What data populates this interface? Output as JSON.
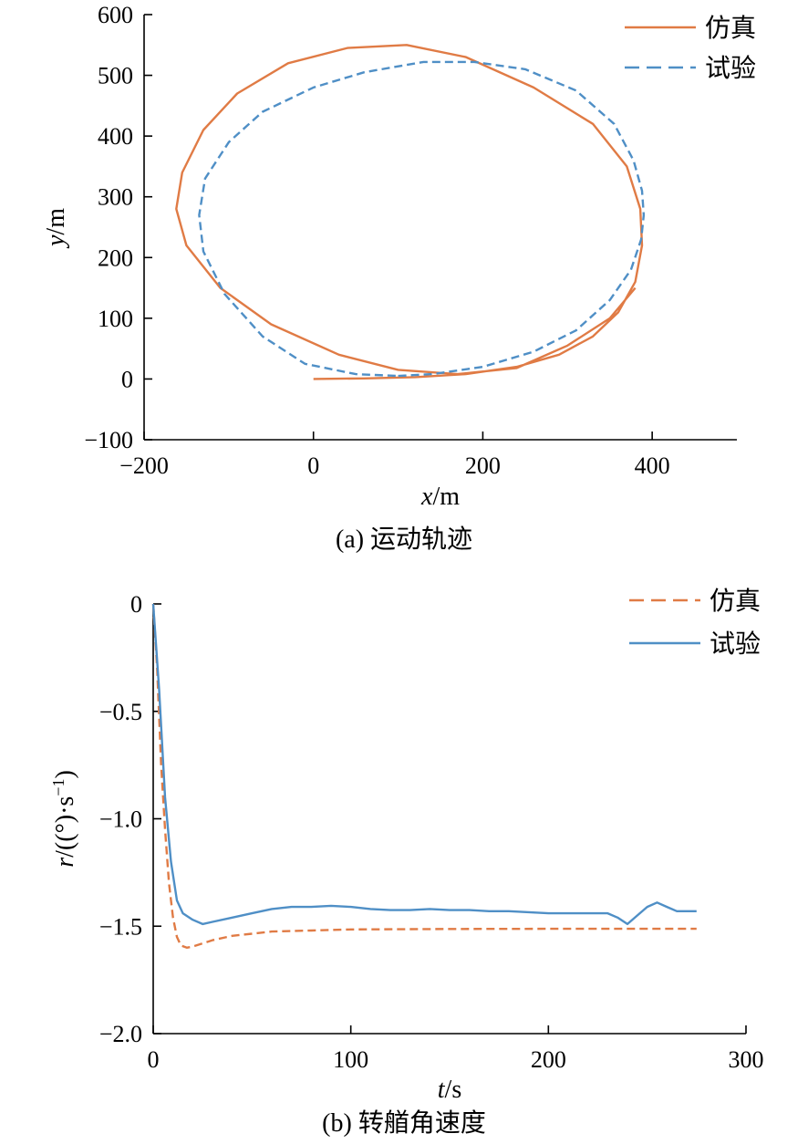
{
  "chart_data": [
    {
      "type": "line",
      "caption": "(a) 运动轨迹",
      "xlabel_var": "x",
      "xlabel_unit": "/m",
      "ylabel_var": "y",
      "ylabel_unit": "/m",
      "xlim": [
        -200,
        500
      ],
      "ylim": [
        -100,
        600
      ],
      "x_ticks": [
        -200,
        0,
        200,
        400
      ],
      "y_ticks": [
        -100,
        0,
        100,
        200,
        300,
        400,
        500,
        600
      ],
      "x_tick_labels": [
        "−200",
        "0",
        "200",
        "400"
      ],
      "y_tick_labels": [
        "−100",
        "0",
        "100",
        "200",
        "300",
        "400",
        "500",
        "600"
      ],
      "legend_position": "top-right",
      "series": [
        {
          "name": "仿真",
          "color": "#E07B45",
          "style": "solid",
          "x": [
            0,
            60,
            120,
            180,
            240,
            290,
            330,
            360,
            380,
            388,
            386,
            370,
            330,
            260,
            180,
            110,
            40,
            -30,
            -90,
            -130,
            -155,
            -162,
            -150,
            -110,
            -50,
            30,
            100,
            170,
            240,
            300,
            350,
            380
          ],
          "y": [
            0,
            1,
            3,
            8,
            20,
            40,
            70,
            110,
            160,
            220,
            280,
            350,
            420,
            480,
            530,
            550,
            545,
            520,
            470,
            410,
            340,
            280,
            220,
            150,
            90,
            40,
            15,
            8,
            18,
            55,
            100,
            150
          ]
        },
        {
          "name": "试验",
          "color": "#4F8FC6",
          "style": "dashed",
          "x": [
            100,
            140,
            200,
            260,
            310,
            350,
            375,
            387,
            390,
            388,
            378,
            355,
            310,
            250,
            190,
            130,
            60,
            0,
            -60,
            -100,
            -128,
            -135,
            -130,
            -105,
            -60,
            -10,
            50,
            100
          ],
          "y": [
            5,
            8,
            20,
            45,
            80,
            130,
            180,
            230,
            270,
            310,
            360,
            420,
            475,
            510,
            522,
            522,
            505,
            480,
            440,
            390,
            330,
            270,
            210,
            140,
            70,
            25,
            8,
            5
          ]
        }
      ]
    },
    {
      "type": "line",
      "caption": "(b) 转艏角速度",
      "xlabel_var": "t",
      "xlabel_unit": "/s",
      "ylabel_var": "r",
      "ylabel_unit": "/((°)·s",
      "ylabel_sup": "−1",
      "ylabel_close": ")",
      "xlim": [
        0,
        300
      ],
      "ylim": [
        -2.0,
        0
      ],
      "x_ticks": [
        0,
        100,
        200,
        300
      ],
      "y_ticks": [
        0,
        -0.5,
        -1.0,
        -1.5,
        -2.0
      ],
      "x_tick_labels": [
        "0",
        "100",
        "200",
        "300"
      ],
      "y_tick_labels": [
        "0",
        "−0.5",
        "−1.0",
        "−1.5",
        "−2.0"
      ],
      "legend_position": "top-right",
      "series": [
        {
          "name": "仿真",
          "color": "#E07B45",
          "style": "dashed",
          "x": [
            0,
            2,
            4,
            6,
            8,
            10,
            12,
            14,
            17,
            20,
            25,
            30,
            40,
            50,
            60,
            80,
            100,
            150,
            200,
            250,
            275
          ],
          "y": [
            0,
            -0.3,
            -0.75,
            -1.05,
            -1.3,
            -1.46,
            -1.55,
            -1.59,
            -1.6,
            -1.595,
            -1.58,
            -1.565,
            -1.545,
            -1.535,
            -1.525,
            -1.52,
            -1.515,
            -1.513,
            -1.512,
            -1.512,
            -1.512
          ]
        },
        {
          "name": "试验",
          "color": "#4F8FC6",
          "style": "solid",
          "x": [
            0,
            3,
            6,
            9,
            12,
            15,
            20,
            25,
            30,
            40,
            50,
            60,
            70,
            80,
            90,
            100,
            110,
            120,
            130,
            140,
            150,
            160,
            170,
            180,
            190,
            200,
            210,
            220,
            230,
            235,
            240,
            245,
            250,
            255,
            260,
            265,
            270,
            275
          ],
          "y": [
            0,
            -0.4,
            -0.9,
            -1.2,
            -1.38,
            -1.44,
            -1.47,
            -1.49,
            -1.48,
            -1.46,
            -1.44,
            -1.42,
            -1.41,
            -1.41,
            -1.405,
            -1.41,
            -1.42,
            -1.425,
            -1.425,
            -1.42,
            -1.425,
            -1.425,
            -1.43,
            -1.43,
            -1.435,
            -1.44,
            -1.44,
            -1.44,
            -1.44,
            -1.46,
            -1.49,
            -1.45,
            -1.41,
            -1.39,
            -1.41,
            -1.43,
            -1.43,
            -1.43
          ]
        }
      ]
    }
  ]
}
